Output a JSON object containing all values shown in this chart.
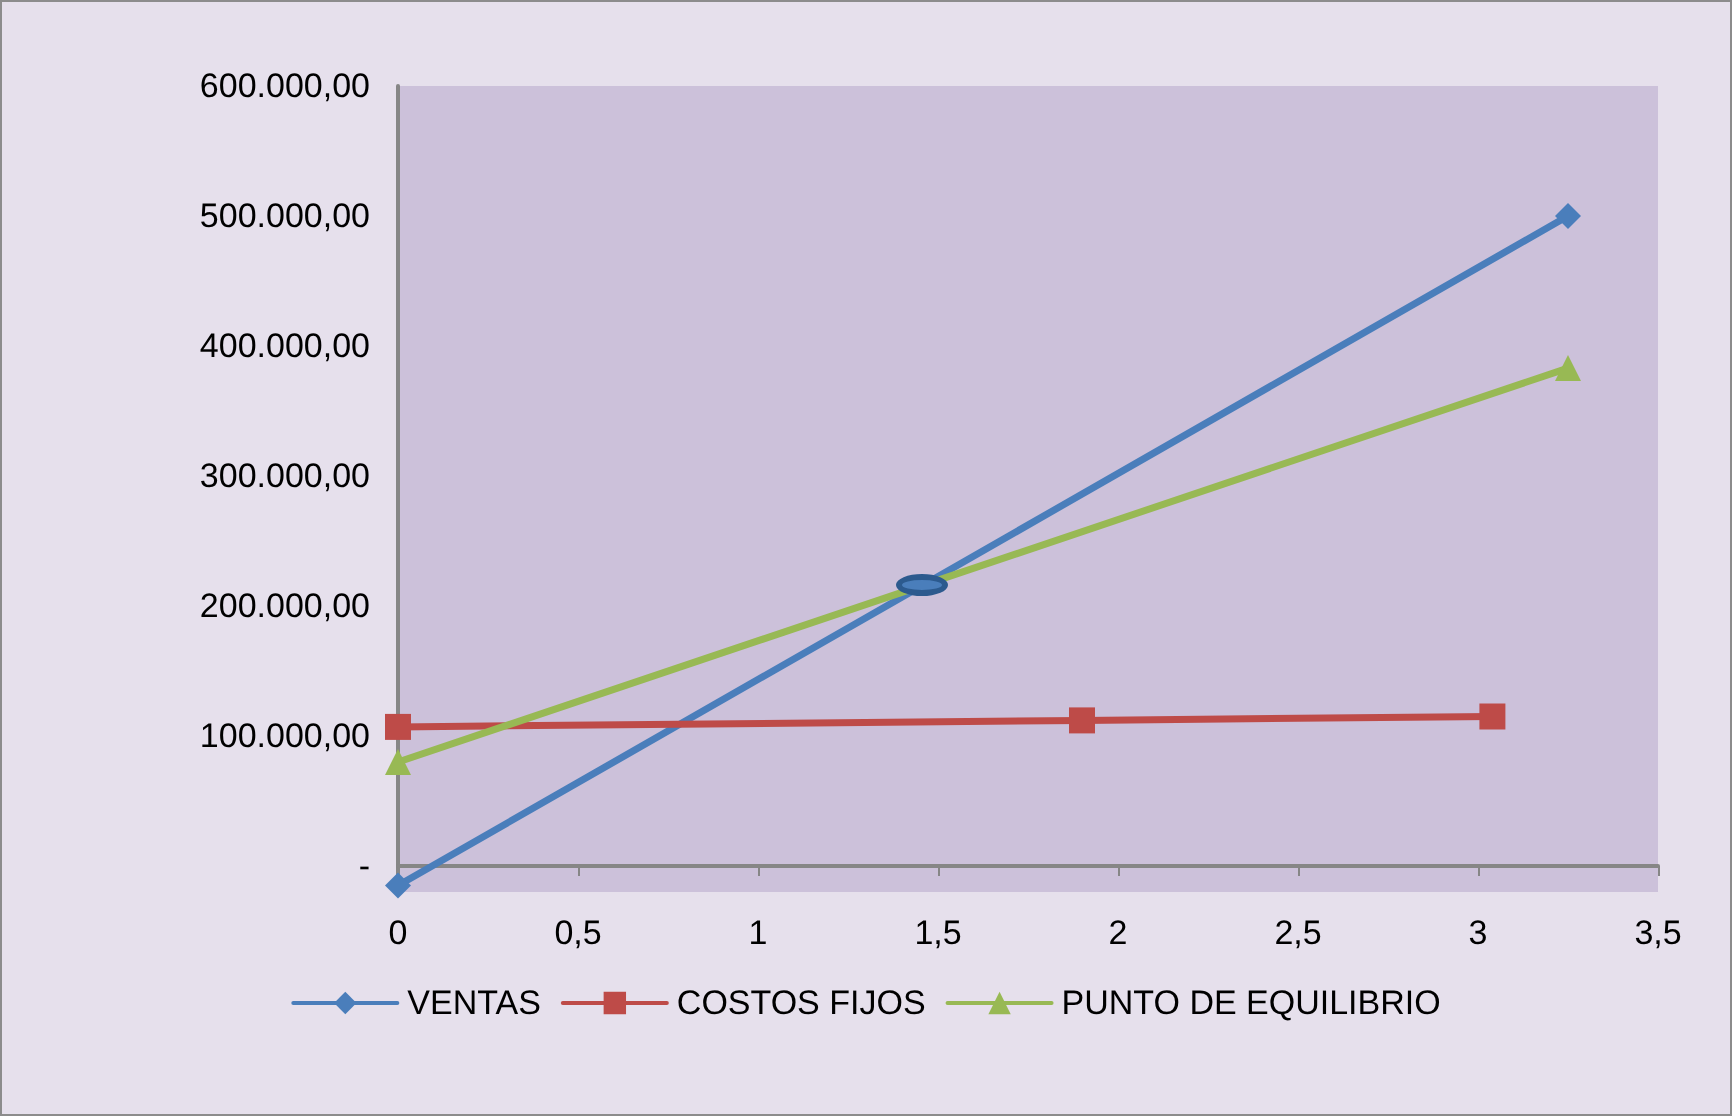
{
  "chart_data": {
    "type": "line",
    "series": [
      {
        "name": "VENTAS",
        "color": "#4a7ebb",
        "marker": "diamond",
        "x": [
          0,
          3.25
        ],
        "values": [
          -15000,
          500000
        ]
      },
      {
        "name": "COSTOS FIJOS",
        "color": "#be4b48",
        "marker": "square",
        "x": [
          0,
          1.9,
          3.04
        ],
        "values": [
          107000,
          112000,
          115000
        ]
      },
      {
        "name": "PUNTO DE EQUILIBRIO",
        "color": "#98b954",
        "marker": "triangle",
        "x": [
          0,
          3.25
        ],
        "values": [
          80000,
          383000
        ]
      }
    ],
    "xlim": [
      0,
      3.5
    ],
    "xticks": [
      0,
      {
        "value": 0.5,
        "label": "0,5"
      },
      1,
      {
        "value": 1.5,
        "label": "1,5"
      },
      2,
      {
        "value": 2.5,
        "label": "2,5"
      },
      3,
      {
        "value": 3.5,
        "label": "3,5"
      }
    ],
    "ylim": [
      -20000,
      600000
    ],
    "yticks": [
      {
        "value": 0,
        "label": "-"
      },
      {
        "value": 100000,
        "label": "100.000,00"
      },
      {
        "value": 200000,
        "label": "200.000,00"
      },
      {
        "value": 300000,
        "label": "300.000,00"
      },
      {
        "value": 400000,
        "label": "400.000,00"
      },
      {
        "value": 500000,
        "label": "500.000,00"
      },
      {
        "value": 600000,
        "label": "600.000,00"
      }
    ],
    "legend": "bottom",
    "line_style": "solid"
  }
}
